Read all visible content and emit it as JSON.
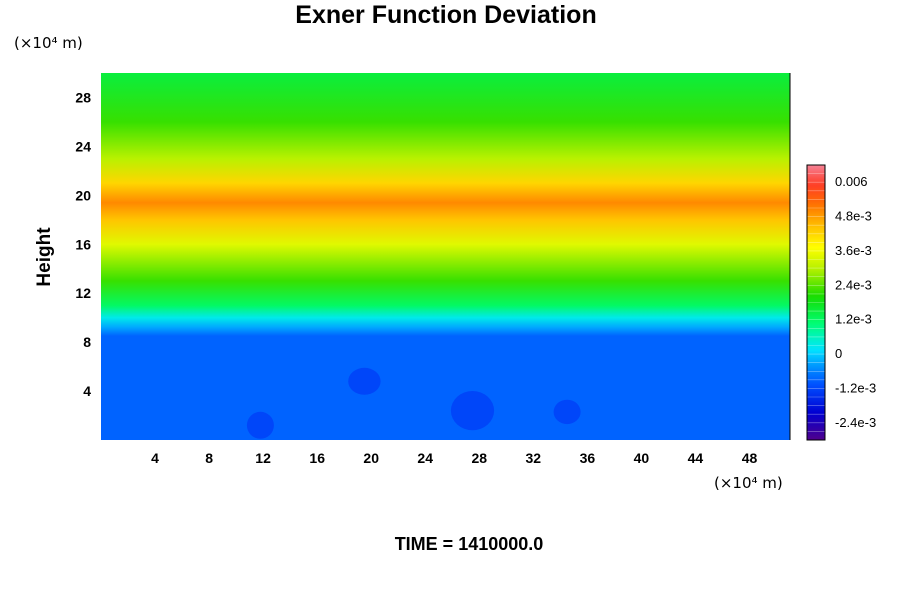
{
  "chart_data": {
    "type": "heatmap",
    "title": "Exner Function Deviation",
    "ylabel": "Height",
    "x_unit": "(×10⁴ m)",
    "y_unit": "(×10⁴ m)",
    "xlim": [
      0,
      51
    ],
    "ylim": [
      0,
      30
    ],
    "x_ticks": [
      4,
      8,
      12,
      16,
      20,
      24,
      28,
      32,
      36,
      40,
      44,
      48
    ],
    "y_ticks": [
      4,
      8,
      12,
      16,
      20,
      24,
      28
    ],
    "colorbar": {
      "min": -0.003,
      "max": 0.0066,
      "ticks": [
        {
          "value": 0.006,
          "label": "0.006"
        },
        {
          "value": 0.0048,
          "label": "4.8e-3"
        },
        {
          "value": 0.0036,
          "label": "3.6e-3"
        },
        {
          "value": 0.0024,
          "label": "2.4e-3"
        },
        {
          "value": 0.0012,
          "label": "1.2e-3"
        },
        {
          "value": 0,
          "label": "0"
        },
        {
          "value": -0.0012,
          "label": "-1.2e-3"
        },
        {
          "value": -0.0024,
          "label": "-2.4e-3"
        }
      ]
    },
    "vertical_profile": [
      {
        "height": 0,
        "value": -0.0009
      },
      {
        "height": 8.5,
        "value": -0.0009
      },
      {
        "height": 9.2,
        "value": -0.0003
      },
      {
        "height": 10,
        "value": 0.0003
      },
      {
        "height": 11,
        "value": 0.0012
      },
      {
        "height": 13,
        "value": 0.0022
      },
      {
        "height": 16,
        "value": 0.0034
      },
      {
        "height": 18,
        "value": 0.0044
      },
      {
        "height": 19.4,
        "value": 0.005
      },
      {
        "height": 21,
        "value": 0.0042
      },
      {
        "height": 23,
        "value": 0.003
      },
      {
        "height": 26,
        "value": 0.0022
      },
      {
        "height": 30,
        "value": 0.0015
      }
    ],
    "anomalies": [
      {
        "x": 11.8,
        "y": 1.2,
        "rx": 1.0,
        "ry": 1.1,
        "value": -0.0012
      },
      {
        "x": 19.5,
        "y": 4.8,
        "rx": 1.2,
        "ry": 1.1,
        "value": -0.0012
      },
      {
        "x": 27.5,
        "y": 2.4,
        "rx": 1.6,
        "ry": 1.6,
        "value": -0.0012
      },
      {
        "x": 34.5,
        "y": 2.3,
        "rx": 1.0,
        "ry": 1.0,
        "value": -0.0012
      }
    ]
  },
  "footer": {
    "time_label": "TIME = 1410000.0"
  }
}
